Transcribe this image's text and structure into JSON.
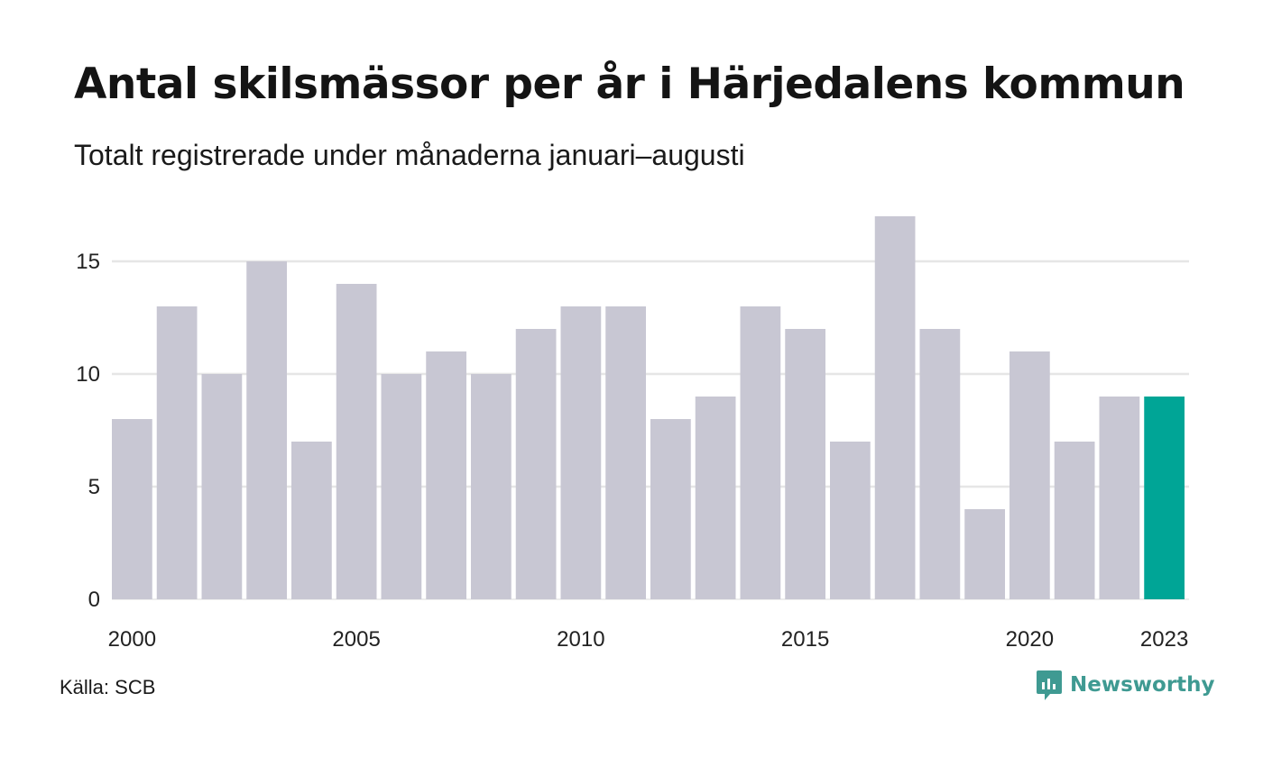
{
  "title": "Antal skilsmässor per år i Härjedalens kommun",
  "subtitle": "Totalt registrerade under månaderna januari–augusti",
  "source": "Källa: SCB",
  "brand": {
    "name": "Newsworthy",
    "color": "#3f9a92"
  },
  "colors": {
    "bar": "#c8c7d3",
    "highlight": "#00a596",
    "grid": "#e6e6e6"
  },
  "chart_data": {
    "type": "bar",
    "x": [
      2000,
      2001,
      2002,
      2003,
      2004,
      2005,
      2006,
      2007,
      2008,
      2009,
      2010,
      2011,
      2012,
      2013,
      2014,
      2015,
      2016,
      2017,
      2018,
      2019,
      2020,
      2021,
      2022,
      2023
    ],
    "values": [
      8,
      13,
      10,
      15,
      7,
      14,
      10,
      11,
      10,
      12,
      13,
      13,
      8,
      9,
      13,
      12,
      7,
      17,
      12,
      4,
      11,
      7,
      9,
      9
    ],
    "highlight_year": 2023,
    "ylim": [
      0,
      17
    ],
    "yticks": [
      0,
      5,
      10,
      15
    ],
    "xtick_labels": [
      "2000",
      "2005",
      "2010",
      "2015",
      "2020",
      "2023"
    ],
    "xlabel": "",
    "ylabel": "",
    "grid": true
  }
}
